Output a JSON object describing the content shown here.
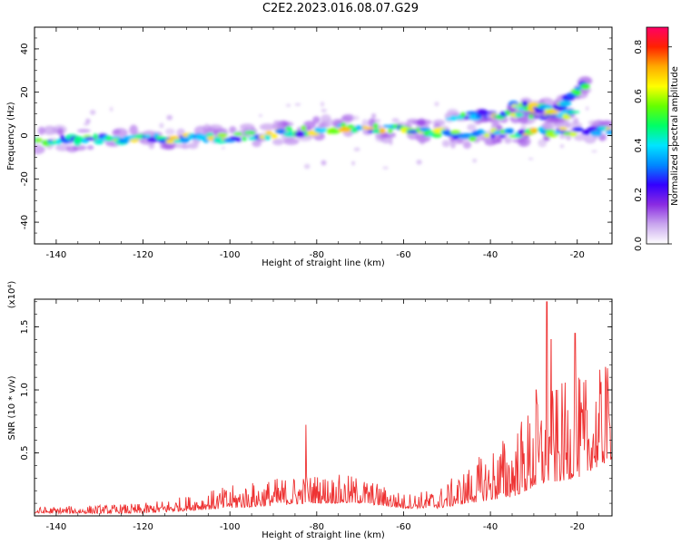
{
  "figure_title": "C2E2.2023.016.08.07.G29",
  "chart_data": [
    {
      "type": "heatmap",
      "title": "",
      "xlabel": "Height of straight line (km)",
      "ylabel": "Frequency (Hz)",
      "xlim": [
        -145,
        -12
      ],
      "ylim": [
        -50,
        50
      ],
      "xticks": [
        -140,
        -120,
        -100,
        -80,
        -60,
        -40,
        -20
      ],
      "yticks": [
        -40,
        -20,
        0,
        20,
        40
      ],
      "colorbar": {
        "label": "Normalized spectral amplitude",
        "range": [
          0,
          0.88
        ],
        "ticks": [
          0.0,
          0.2,
          0.4,
          0.6,
          0.8
        ],
        "colors": [
          "#ffffff",
          "#c9a6ee",
          "#8a2be2",
          "#3300ff",
          "#0088ff",
          "#00e5ff",
          "#00ff66",
          "#66ff00",
          "#ffff00",
          "#ffaa00",
          "#ff2200",
          "#ff0066"
        ]
      },
      "ridges": [
        {
          "x": [
            -145,
            -125,
            -100,
            -90,
            -75,
            -60,
            -45,
            -35,
            -20,
            -12
          ],
          "y": [
            -2.5,
            -1.5,
            -1,
            1,
            3.5,
            3,
            0,
            1,
            2,
            2
          ]
        },
        {
          "x": [
            -50,
            -40,
            -30,
            -20
          ],
          "y": [
            8,
            10,
            9,
            10
          ]
        },
        {
          "x": [
            -35,
            -25,
            -18
          ],
          "y": [
            14,
            12,
            24
          ]
        }
      ],
      "grid": false,
      "legend": "colorbar-right"
    },
    {
      "type": "line",
      "title": "",
      "xlabel": "Height of straight line (km)",
      "ylabel": "SNR (10 * v/v)",
      "scale_label": "(x10⁴)",
      "xlim": [
        -145,
        -12
      ],
      "ylim": [
        0,
        1.72
      ],
      "xticks": [
        -140,
        -120,
        -100,
        -80,
        -60,
        -40,
        -20
      ],
      "yticks": [
        0.5,
        1.0,
        1.5
      ],
      "ytick_labels": [
        "0.5",
        "1.0",
        "1.5"
      ],
      "color": "#ee3333",
      "envelope": {
        "x": [
          -145,
          -120,
          -110,
          -100,
          -90,
          -82,
          -70,
          -60,
          -52,
          -45,
          -35,
          -28,
          -20,
          -12
        ],
        "base": [
          0.02,
          0.02,
          0.04,
          0.06,
          0.08,
          0.1,
          0.1,
          0.06,
          0.06,
          0.1,
          0.15,
          0.25,
          0.3,
          0.45
        ],
        "amp": [
          0.05,
          0.08,
          0.12,
          0.18,
          0.22,
          0.24,
          0.22,
          0.12,
          0.16,
          0.3,
          0.55,
          0.75,
          0.8,
          0.75
        ]
      },
      "peaks": [
        {
          "x": -82.5,
          "y": 0.72
        },
        {
          "x": -27.0,
          "y": 1.7
        },
        {
          "x": -20.5,
          "y": 1.45
        },
        {
          "x": -26.0,
          "y": 1.4
        },
        {
          "x": -29.5,
          "y": 1.0
        },
        {
          "x": -13.5,
          "y": 1.18
        }
      ],
      "grid": false
    }
  ]
}
